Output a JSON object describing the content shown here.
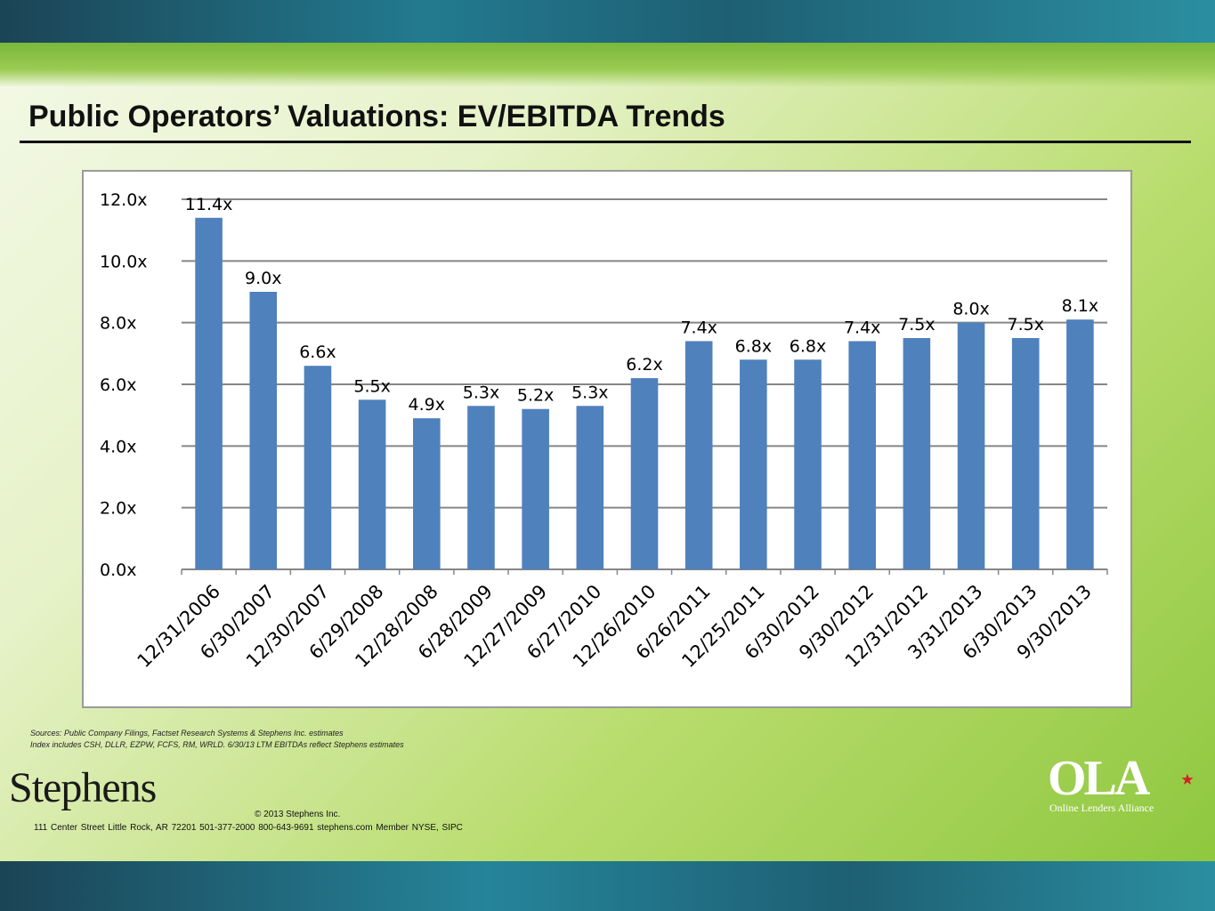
{
  "slide": {
    "title": "Public Operators’ Valuations: EV/EBITDA Trends",
    "sources_line1": "Sources:  Public Company Filings, Factset Research Systems & Stephens Inc. estimates",
    "sources_line2": "Index includes CSH, DLLR, EZPW, FCFS, RM, WRLD. 6/30/13 LTM EBITDAs reflect Stephens estimates",
    "logo_text": "Stephens",
    "copyright": "© 2013 Stephens Inc.",
    "address": "111 Center Street   Little Rock, AR 72201    501-377-2000  800-643-9691   stephens.com    Member NYSE, SIPC",
    "ola_logo": "OLA",
    "ola_subtitle": "Online Lenders Alliance"
  },
  "colors": {
    "bar": "#4f81bd",
    "gridline": "#868686",
    "ola_star": "#d42027"
  },
  "chart_data": {
    "type": "bar",
    "categories": [
      "12/31/2006",
      "6/30/2007",
      "12/30/2007",
      "6/29/2008",
      "12/28/2008",
      "6/28/2009",
      "12/27/2009",
      "6/27/2010",
      "12/26/2010",
      "6/26/2011",
      "12/25/2011",
      "6/30/2012",
      "9/30/2012",
      "12/31/2012",
      "3/31/2013",
      "6/30/2013",
      "9/30/2013"
    ],
    "values": [
      11.4,
      9.0,
      6.6,
      5.5,
      4.9,
      5.3,
      5.2,
      5.3,
      6.2,
      7.4,
      6.8,
      6.8,
      7.4,
      7.5,
      8.0,
      7.5,
      8.1
    ],
    "data_labels": [
      "11.4x",
      "9.0x",
      "6.6x",
      "5.5x",
      "4.9x",
      "5.3x",
      "5.2x",
      "5.3x",
      "6.2x",
      "7.4x",
      "6.8x",
      "6.8x",
      "7.4x",
      "7.5x",
      "8.0x",
      "7.5x",
      "8.1x"
    ],
    "y_ticks": [
      0,
      2,
      4,
      6,
      8,
      10,
      12
    ],
    "y_tick_labels": [
      "0.0x",
      "2.0x",
      "4.0x",
      "6.0x",
      "8.0x",
      "10.0x",
      "12.0x"
    ],
    "ylim": [
      0,
      12
    ],
    "grid": true,
    "legend": "none",
    "title": "",
    "xlabel": "",
    "ylabel": ""
  }
}
